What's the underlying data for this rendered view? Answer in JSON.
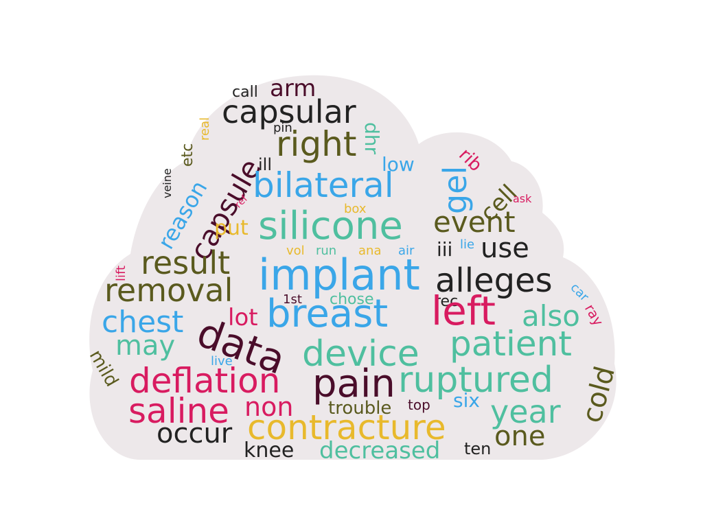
{
  "word_cloud": {
    "background_color": "#ffffff",
    "cloud_color": "#ede8ea",
    "words": [
      "capsular",
      "arm",
      "call",
      "real",
      "pin",
      "right",
      "dhr",
      "low",
      "gel",
      "rib",
      "etc",
      "veine",
      "ill",
      "capsule",
      "bilateral",
      "ref",
      "reason",
      "box",
      "cell",
      "ask",
      "put",
      "silicone",
      "event",
      "result",
      "vol",
      "run",
      "ana",
      "air",
      "iii",
      "lie",
      "use",
      "implant",
      "lift",
      "removal",
      "alleges",
      "1st",
      "chose",
      "rec",
      "car",
      "ray",
      "chest",
      "lot",
      "breast",
      "left",
      "also",
      "data",
      "may",
      "device",
      "patient",
      "mild",
      "live",
      "cold",
      "deflation",
      "pain",
      "ruptured",
      "saline",
      "non",
      "six",
      "trouble",
      "top",
      "year",
      "occur",
      "contracture",
      "one",
      "knee",
      "decreased",
      "ten"
    ]
  }
}
